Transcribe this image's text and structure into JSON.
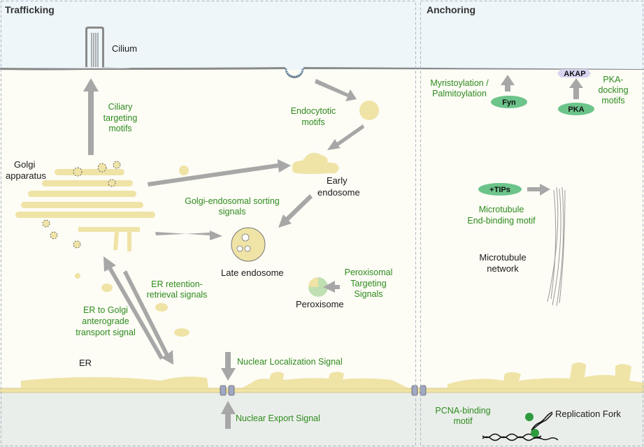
{
  "panels": {
    "trafficking": "Trafficking",
    "anchoring": "Anchoring"
  },
  "organelles": {
    "cilium": "Cilium",
    "golgi_1": "Golgi",
    "golgi_2": "apparatus",
    "early_endosome_1": "Early",
    "early_endosome_2": "endosome",
    "late_endosome": "Late endosome",
    "peroxisome": "Peroxisome",
    "er": "ER",
    "microtubule_network_1": "Microtubule",
    "microtubule_network_2": "network",
    "replication_fork": "Replication Fork"
  },
  "signals": {
    "ciliary": [
      "Ciliary",
      "targeting",
      "motifs"
    ],
    "endocytotic": [
      "Endocytotic",
      "motifs"
    ],
    "golgi_endosomal": [
      "Golgi-endosomal sorting",
      "signals"
    ],
    "er_retention": [
      "ER retention-",
      "retrieval signals"
    ],
    "er_to_golgi": [
      "ER to Golgi",
      "anterograde",
      "transport signal"
    ],
    "peroxisomal": [
      "Peroxisomal",
      "Targeting",
      "Signals"
    ],
    "nls": "Nuclear Localization Signal",
    "nes": "Nuclear Export Signal",
    "myristoylation": [
      "Myristoylation /",
      "Palmitoylation"
    ],
    "pka_docking": [
      "PKA-",
      "docking",
      "motifs"
    ],
    "microtubule_eb": [
      "Microtubule",
      "End-binding motif"
    ],
    "pcna": [
      "PCNA-binding",
      "motif"
    ]
  },
  "proteins": {
    "fyn": "Fyn",
    "pka": "PKA",
    "akap": "AKAP",
    "tips": "+TIPs"
  },
  "colors": {
    "signal_text": "#2e8b1e",
    "arrow": "#a7a7a7",
    "organelle": "#efe3a6",
    "protein_pill": "#6cc48a",
    "extracellular": "#eef6f9",
    "cytoplasm": "#fdfcf5",
    "nucleus": "#eaeeea"
  }
}
